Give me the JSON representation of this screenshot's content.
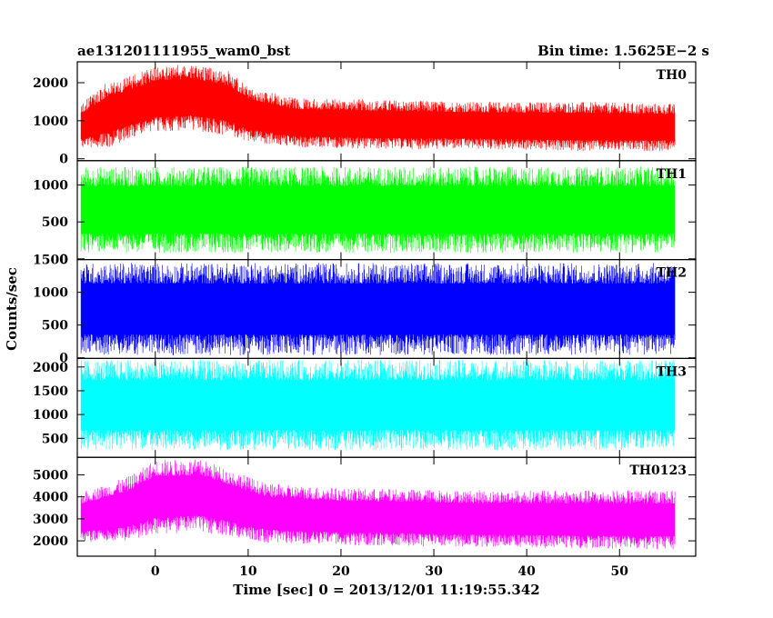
{
  "header": {
    "title": "ae131201111955_wam0_bst",
    "bin_time": "Bin time: 1.5625E−2 s"
  },
  "axes": {
    "xlabel": "Time [sec] 0 = 2013/12/01 11:19:55.342",
    "ylabel": "Counts/sec"
  },
  "chart_data": {
    "type": "line",
    "xlim": [
      -8.4,
      58.2
    ],
    "x_ticks": [
      0,
      10,
      20,
      30,
      40,
      50
    ],
    "x_tick_labels": [
      "0",
      "10",
      "20",
      "30",
      "40",
      "50"
    ],
    "data_x_range": [
      -8.0,
      56.0
    ],
    "panels": [
      {
        "name": "TH0",
        "color": "#ff0000",
        "ylim": [
          -50,
          2550
        ],
        "y_ticks": [
          0,
          1000,
          2000
        ],
        "y_tick_labels": [
          "0",
          "1000",
          "2000"
        ],
        "envelope": [
          {
            "x": -8,
            "low": 250,
            "high": 1450
          },
          {
            "x": -5,
            "low": 300,
            "high": 2050
          },
          {
            "x": -3,
            "low": 500,
            "high": 2150
          },
          {
            "x": 0,
            "low": 700,
            "high": 2450
          },
          {
            "x": 4,
            "low": 750,
            "high": 2500
          },
          {
            "x": 8,
            "low": 600,
            "high": 2300
          },
          {
            "x": 10,
            "low": 450,
            "high": 1900
          },
          {
            "x": 15,
            "low": 300,
            "high": 1600
          },
          {
            "x": 25,
            "low": 250,
            "high": 1550
          },
          {
            "x": 35,
            "low": 250,
            "high": 1500
          },
          {
            "x": 45,
            "low": 200,
            "high": 1500
          },
          {
            "x": 56,
            "low": 200,
            "high": 1450
          }
        ]
      },
      {
        "name": "TH1",
        "color": "#00ff00",
        "ylim": [
          -10,
          1330
        ],
        "y_ticks": [
          0,
          500,
          1000
        ],
        "y_tick_labels": [
          "0",
          "500",
          "1000"
        ],
        "envelope": [
          {
            "x": -8,
            "low": 80,
            "high": 1250
          },
          {
            "x": 56,
            "low": 80,
            "high": 1250
          }
        ]
      },
      {
        "name": "TH2",
        "color": "#0000ff",
        "ylim": [
          -10,
          1500
        ],
        "y_ticks": [
          0,
          500,
          1000,
          1500
        ],
        "y_tick_labels": [
          "0",
          "500",
          "1000",
          "1500"
        ],
        "envelope": [
          {
            "x": -8,
            "low": 40,
            "high": 1450
          },
          {
            "x": 56,
            "low": 40,
            "high": 1450
          }
        ]
      },
      {
        "name": "TH3",
        "color": "#00ffff",
        "ylim": [
          100,
          2180
        ],
        "y_ticks": [
          500,
          1000,
          1500,
          2000
        ],
        "y_tick_labels": [
          "500",
          "1000",
          "1500",
          "2000"
        ],
        "envelope": [
          {
            "x": -8,
            "low": 250,
            "high": 2150
          },
          {
            "x": 56,
            "low": 250,
            "high": 2150
          }
        ]
      },
      {
        "name": "TH0123",
        "color": "#ff00ff",
        "ylim": [
          1300,
          5800
        ],
        "y_ticks": [
          2000,
          3000,
          4000,
          5000
        ],
        "y_tick_labels": [
          "2000",
          "3000",
          "4000",
          "5000"
        ],
        "envelope": [
          {
            "x": -8,
            "low": 1900,
            "high": 4200
          },
          {
            "x": -3,
            "low": 2000,
            "high": 4900
          },
          {
            "x": 0,
            "low": 2300,
            "high": 5700
          },
          {
            "x": 5,
            "low": 2400,
            "high": 5700
          },
          {
            "x": 9,
            "low": 2100,
            "high": 5100
          },
          {
            "x": 12,
            "low": 1900,
            "high": 4600
          },
          {
            "x": 20,
            "low": 1800,
            "high": 4400
          },
          {
            "x": 35,
            "low": 1700,
            "high": 4300
          },
          {
            "x": 56,
            "low": 1600,
            "high": 4300
          }
        ]
      }
    ]
  }
}
